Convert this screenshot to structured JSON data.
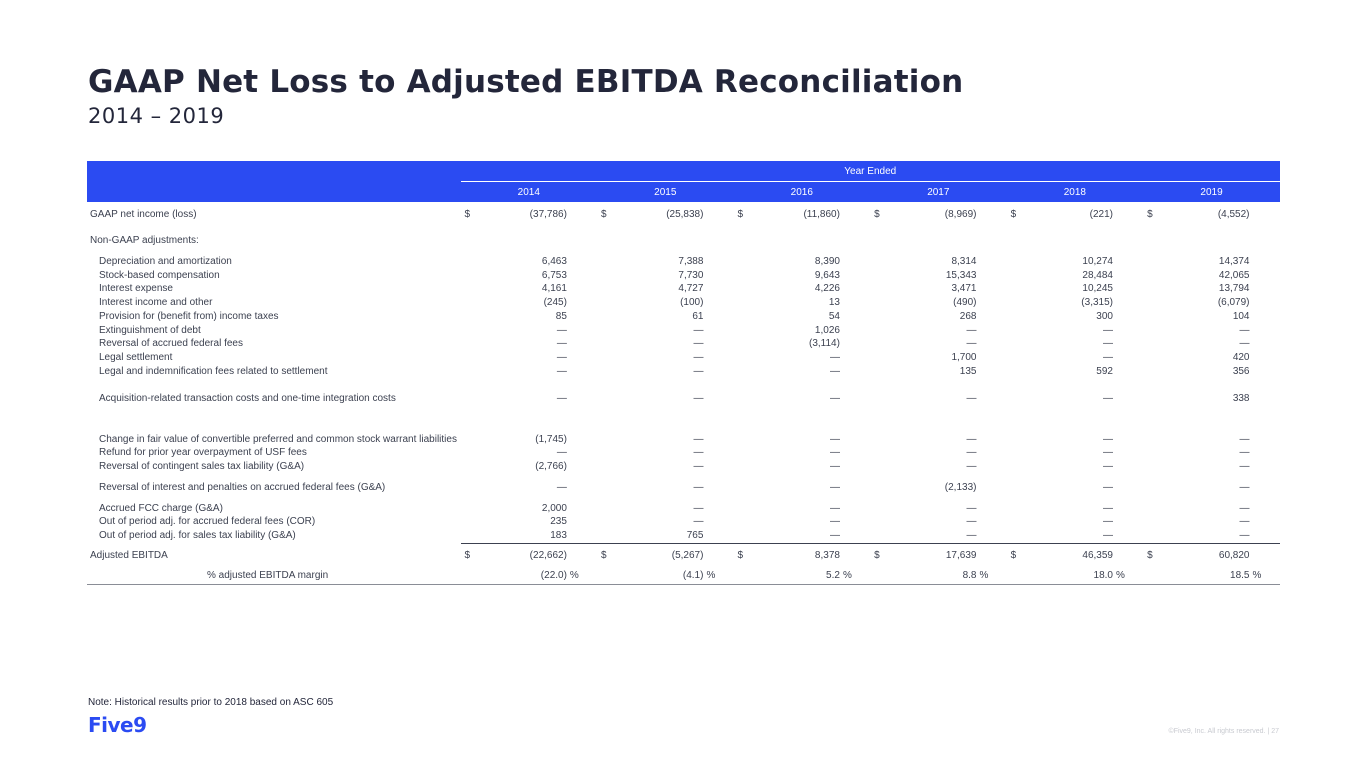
{
  "title": "GAAP Net Loss to Adjusted EBITDA Reconciliation",
  "subtitle": "2014 – 2019",
  "table": {
    "group_header": "Year Ended",
    "years": [
      "2014",
      "2015",
      "2016",
      "2017",
      "2018",
      "2019"
    ],
    "net_income": {
      "label": "GAAP net income (loss)",
      "dollar": "$",
      "values": [
        "(37,786)",
        "(25,838)",
        "(11,860)",
        "(8,969)",
        "(221)",
        "(4,552)"
      ]
    },
    "adjustments_header": "Non-GAAP adjustments:",
    "rows": [
      {
        "label": "Depreciation and amortization",
        "values": [
          "6,463",
          "7,388",
          "8,390",
          "8,314",
          "10,274",
          "14,374"
        ]
      },
      {
        "label": "Stock-based compensation",
        "values": [
          "6,753",
          "7,730",
          "9,643",
          "15,343",
          "28,484",
          "42,065"
        ]
      },
      {
        "label": "Interest expense",
        "values": [
          "4,161",
          "4,727",
          "4,226",
          "3,471",
          "10,245",
          "13,794"
        ]
      },
      {
        "label": "Interest income and other",
        "values": [
          "(245)",
          "(100)",
          "13",
          "(490)",
          "(3,315)",
          "(6,079)"
        ]
      },
      {
        "label": "Provision for (benefit from) income taxes",
        "values": [
          "85",
          "61",
          "54",
          "268",
          "300",
          "104"
        ]
      },
      {
        "label": "Extinguishment of debt",
        "values": [
          "—",
          "—",
          "1,026",
          "—",
          "—",
          "—"
        ]
      },
      {
        "label": "Reversal of accrued federal fees",
        "values": [
          "—",
          "—",
          "(3,114)",
          "—",
          "—",
          "—"
        ]
      },
      {
        "label": "Legal settlement",
        "values": [
          "—",
          "—",
          "—",
          "1,700",
          "—",
          "420"
        ]
      },
      {
        "label": "Legal and indemnification fees related to settlement",
        "values": [
          "—",
          "—",
          "—",
          "135",
          "592",
          "356"
        ]
      },
      {
        "label": "Acquisition-related transaction costs and one-time integration costs",
        "values": [
          "—",
          "—",
          "—",
          "—",
          "—",
          "338"
        ]
      },
      {
        "label": "Change in fair value of convertible preferred and common stock warrant liabilities",
        "values": [
          "(1,745)",
          "—",
          "—",
          "—",
          "—",
          "—"
        ]
      },
      {
        "label": "Refund for prior year overpayment of USF fees",
        "values": [
          "—",
          "—",
          "—",
          "—",
          "—",
          "—"
        ]
      },
      {
        "label": "Reversal of contingent sales tax liability (G&A)",
        "values": [
          "(2,766)",
          "—",
          "—",
          "—",
          "—",
          "—"
        ]
      },
      {
        "label": "Reversal of interest and penalties on accrued federal fees (G&A)",
        "values": [
          "—",
          "—",
          "—",
          "(2,133)",
          "—",
          "—"
        ]
      },
      {
        "label": "Accrued FCC charge (G&A)",
        "values": [
          "2,000",
          "—",
          "—",
          "—",
          "—",
          "—"
        ]
      },
      {
        "label": "Out of period adj. for accrued federal fees (COR)",
        "values": [
          "235",
          "—",
          "—",
          "—",
          "—",
          "—"
        ]
      },
      {
        "label": "Out of period adj. for sales tax liability (G&A)",
        "values": [
          "183",
          "765",
          "—",
          "—",
          "—",
          "—"
        ]
      }
    ],
    "adjusted_ebitda": {
      "label": "Adjusted EBITDA",
      "dollar": "$",
      "values": [
        "(22,662)",
        "(5,267)",
        "8,378",
        "17,639",
        "46,359",
        "60,820"
      ]
    },
    "margin": {
      "label": "% adjusted EBITDA margin",
      "values": [
        "(22.0)",
        "(4.1)",
        "5.2",
        "8.8",
        "18.0",
        "18.5"
      ],
      "suffixes": [
        "%",
        "%",
        "%",
        "%",
        "%",
        "%"
      ]
    }
  },
  "note": "Note: Historical results prior to 2018 based on ASC 605",
  "logo_text": "Five9",
  "footer": "©Five9, Inc. All rights reserved. | 27",
  "colors": {
    "header_blue": "#2b4bf2",
    "title": "#23263a",
    "text": "#3c4150"
  }
}
